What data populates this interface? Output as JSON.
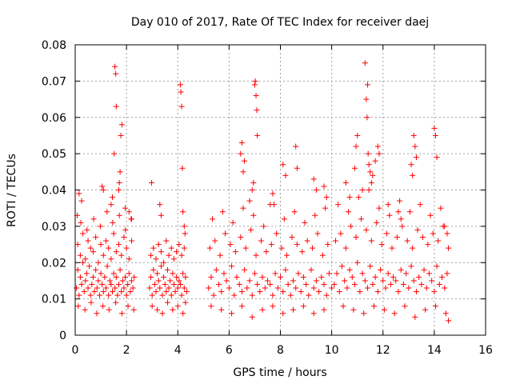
{
  "chart_data": {
    "type": "scatter",
    "title": "Day 010 of 2017, Rate Of TEC Index for receiver daej",
    "xlabel": "GPS time / hours",
    "ylabel": "ROTI / TECUs",
    "xlim": [
      0,
      16
    ],
    "ylim": [
      0,
      0.08
    ],
    "xticks": [
      0,
      2,
      4,
      6,
      8,
      10,
      12,
      14,
      16
    ],
    "yticks": [
      0,
      0.01,
      0.02,
      0.03,
      0.04,
      0.05,
      0.06,
      0.07,
      0.08
    ],
    "xtick_labels": [
      "0",
      "2",
      "4",
      "6",
      "8",
      "10",
      "12",
      "14",
      "16"
    ],
    "ytick_labels": [
      "0",
      "0.01",
      "0.02",
      "0.03",
      "0.04",
      "0.05",
      "0.06",
      "0.07",
      "0.08"
    ],
    "grid": true,
    "marker": "+",
    "color": "#ff0000",
    "series": [
      {
        "name": "ROTI",
        "x": [
          0.05,
          0.1,
          0.15,
          0.2,
          0.25,
          0.3,
          0.35,
          0.4,
          0.45,
          0.5,
          0.55,
          0.6,
          0.65,
          0.7,
          0.75,
          0.8,
          0.85,
          0.9,
          0.95,
          1.0,
          1.05,
          1.1,
          1.15,
          1.2,
          1.25,
          1.3,
          1.35,
          1.4,
          1.45,
          1.5,
          1.55,
          1.6,
          1.65,
          1.7,
          1.75,
          1.8,
          1.85,
          1.9,
          1.95,
          2.0,
          2.05,
          2.1,
          2.15,
          2.2,
          2.25,
          2.3,
          0.1,
          0.2,
          0.3,
          0.4,
          0.5,
          0.6,
          0.7,
          0.8,
          0.9,
          1.0,
          1.1,
          1.2,
          1.3,
          1.4,
          1.5,
          1.6,
          1.7,
          1.8,
          1.9,
          2.0,
          2.1,
          2.2,
          0.12,
          0.38,
          0.62,
          0.84,
          1.08,
          1.32,
          1.58,
          1.82,
          2.06,
          2.28,
          0.08,
          0.22,
          0.46,
          0.72,
          0.98,
          1.24,
          1.46,
          1.72,
          1.96,
          2.18,
          1.55,
          1.58,
          1.6,
          1.52,
          1.75,
          1.78,
          1.82,
          1.7,
          1.72,
          1.95,
          1.05,
          1.1,
          0.15,
          0.25,
          1.4,
          1.45,
          2.1,
          2.2,
          2.9,
          2.95,
          3.0,
          3.05,
          3.1,
          3.15,
          3.2,
          3.25,
          3.3,
          3.35,
          3.4,
          3.45,
          3.5,
          3.55,
          3.6,
          3.65,
          3.7,
          3.75,
          3.8,
          3.85,
          3.9,
          3.95,
          4.0,
          4.05,
          4.1,
          4.15,
          4.2,
          4.25,
          4.3,
          4.35,
          2.95,
          3.05,
          3.15,
          3.25,
          3.35,
          3.45,
          3.55,
          3.65,
          3.75,
          3.85,
          3.95,
          4.05,
          4.15,
          4.25,
          3.0,
          3.2,
          3.4,
          3.6,
          3.8,
          4.0,
          4.2,
          4.3,
          4.1,
          4.12,
          4.15,
          4.18,
          4.2,
          3.3,
          3.35,
          4.25,
          4.28,
          2.98,
          5.2,
          5.3,
          5.4,
          5.5,
          5.6,
          5.7,
          5.8,
          5.9,
          6.0,
          6.1,
          6.2,
          6.3,
          6.4,
          6.5,
          6.6,
          6.7,
          6.8,
          6.9,
          7.0,
          7.1,
          7.2,
          7.3,
          7.4,
          7.5,
          7.6,
          7.7,
          7.8,
          7.9,
          8.0,
          8.1,
          8.2,
          8.3,
          8.4,
          8.5,
          8.6,
          8.7,
          8.8,
          8.9,
          9.0,
          9.1,
          9.2,
          9.3,
          9.4,
          9.5,
          9.6,
          9.7,
          9.8,
          9.9,
          10.0,
          5.25,
          5.45,
          5.65,
          5.85,
          6.05,
          6.25,
          6.45,
          6.65,
          6.85,
          7.05,
          7.25,
          7.45,
          7.65,
          7.85,
          8.05,
          8.25,
          8.45,
          8.65,
          8.85,
          9.05,
          9.25,
          9.45,
          9.65,
          9.85,
          5.35,
          5.75,
          6.15,
          6.55,
          6.95,
          7.35,
          7.75,
          8.15,
          8.55,
          8.95,
          9.35,
          9.75,
          5.3,
          5.7,
          6.1,
          6.5,
          6.9,
          7.3,
          7.7,
          8.1,
          8.5,
          8.9,
          9.3,
          9.7,
          6.45,
          6.5,
          6.55,
          6.6,
          7.0,
          7.02,
          7.05,
          7.08,
          7.1,
          6.9,
          6.95,
          8.1,
          8.2,
          8.6,
          8.65,
          9.3,
          9.4,
          9.7,
          9.8,
          6.8,
          7.6,
          7.7,
          10.1,
          10.2,
          10.3,
          10.4,
          10.5,
          10.6,
          10.7,
          10.8,
          10.9,
          11.0,
          11.1,
          11.2,
          11.3,
          11.4,
          11.5,
          11.6,
          11.7,
          11.8,
          11.9,
          12.0,
          12.1,
          12.2,
          12.3,
          12.4,
          12.5,
          12.6,
          12.7,
          12.8,
          12.9,
          13.0,
          13.1,
          13.2,
          13.3,
          13.4,
          13.5,
          13.6,
          13.7,
          13.8,
          13.9,
          14.0,
          14.1,
          14.2,
          14.3,
          14.4,
          14.5,
          10.15,
          10.35,
          10.55,
          10.75,
          10.95,
          11.15,
          11.35,
          11.55,
          11.75,
          11.95,
          12.15,
          12.35,
          12.55,
          12.75,
          12.95,
          13.15,
          13.35,
          13.55,
          13.75,
          13.95,
          14.15,
          14.35,
          14.55,
          10.25,
          10.65,
          11.05,
          11.45,
          11.85,
          12.25,
          12.65,
          13.05,
          13.45,
          13.85,
          14.25,
          10.45,
          10.85,
          11.25,
          11.65,
          12.05,
          12.45,
          12.85,
          13.25,
          13.65,
          14.05,
          14.45,
          11.3,
          11.35,
          11.38,
          11.4,
          11.42,
          11.45,
          11.5,
          11.55,
          11.6,
          10.95,
          11.0,
          10.9,
          11.7,
          11.8,
          11.85,
          13.2,
          13.25,
          13.3,
          13.1,
          13.15,
          14.0,
          14.05,
          14.1,
          14.4,
          14.5,
          12.6,
          12.7,
          12.2,
          11.2,
          10.7,
          10.55,
          14.55
        ],
        "y": [
          0.013,
          0.018,
          0.011,
          0.016,
          0.014,
          0.02,
          0.012,
          0.015,
          0.017,
          0.013,
          0.019,
          0.011,
          0.014,
          0.016,
          0.012,
          0.018,
          0.013,
          0.015,
          0.011,
          0.017,
          0.014,
          0.012,
          0.016,
          0.013,
          0.019,
          0.011,
          0.015,
          0.014,
          0.012,
          0.017,
          0.013,
          0.016,
          0.011,
          0.014,
          0.018,
          0.012,
          0.015,
          0.013,
          0.016,
          0.011,
          0.014,
          0.017,
          0.012,
          0.015,
          0.013,
          0.016,
          0.025,
          0.022,
          0.028,
          0.021,
          0.026,
          0.024,
          0.023,
          0.027,
          0.02,
          0.025,
          0.022,
          0.026,
          0.024,
          0.021,
          0.028,
          0.023,
          0.025,
          0.022,
          0.027,
          0.024,
          0.021,
          0.026,
          0.008,
          0.007,
          0.009,
          0.006,
          0.008,
          0.007,
          0.009,
          0.006,
          0.008,
          0.007,
          0.033,
          0.031,
          0.029,
          0.032,
          0.03,
          0.034,
          0.031,
          0.033,
          0.029,
          0.032,
          0.074,
          0.072,
          0.063,
          0.05,
          0.045,
          0.055,
          0.058,
          0.04,
          0.042,
          0.035,
          0.041,
          0.04,
          0.039,
          0.037,
          0.036,
          0.038,
          0.034,
          0.032,
          0.013,
          0.016,
          0.011,
          0.018,
          0.014,
          0.012,
          0.017,
          0.015,
          0.013,
          0.019,
          0.011,
          0.016,
          0.014,
          0.012,
          0.018,
          0.013,
          0.015,
          0.011,
          0.017,
          0.014,
          0.012,
          0.016,
          0.013,
          0.015,
          0.014,
          0.011,
          0.017,
          0.013,
          0.016,
          0.012,
          0.022,
          0.024,
          0.021,
          0.025,
          0.023,
          0.02,
          0.026,
          0.022,
          0.024,
          0.021,
          0.023,
          0.025,
          0.022,
          0.024,
          0.008,
          0.007,
          0.006,
          0.009,
          0.007,
          0.008,
          0.006,
          0.009,
          0.069,
          0.067,
          0.063,
          0.046,
          0.034,
          0.036,
          0.033,
          0.03,
          0.028,
          0.042,
          0.013,
          0.016,
          0.011,
          0.018,
          0.014,
          0.012,
          0.017,
          0.015,
          0.013,
          0.019,
          0.011,
          0.016,
          0.014,
          0.012,
          0.018,
          0.013,
          0.015,
          0.011,
          0.017,
          0.014,
          0.012,
          0.016,
          0.013,
          0.015,
          0.014,
          0.011,
          0.017,
          0.013,
          0.016,
          0.012,
          0.018,
          0.014,
          0.011,
          0.015,
          0.013,
          0.017,
          0.012,
          0.016,
          0.014,
          0.011,
          0.018,
          0.013,
          0.015,
          0.012,
          0.016,
          0.014,
          0.011,
          0.017,
          0.013,
          0.024,
          0.026,
          0.022,
          0.028,
          0.025,
          0.023,
          0.027,
          0.024,
          0.029,
          0.022,
          0.026,
          0.023,
          0.025,
          0.028,
          0.024,
          0.022,
          0.027,
          0.025,
          0.023,
          0.026,
          0.024,
          0.028,
          0.022,
          0.025,
          0.032,
          0.034,
          0.031,
          0.035,
          0.033,
          0.03,
          0.036,
          0.032,
          0.034,
          0.031,
          0.033,
          0.035,
          0.008,
          0.007,
          0.006,
          0.008,
          0.005,
          0.007,
          0.008,
          0.006,
          0.007,
          0.008,
          0.006,
          0.007,
          0.05,
          0.053,
          0.045,
          0.048,
          0.069,
          0.07,
          0.066,
          0.062,
          0.055,
          0.04,
          0.042,
          0.047,
          0.044,
          0.052,
          0.046,
          0.043,
          0.04,
          0.041,
          0.038,
          0.037,
          0.036,
          0.039,
          0.014,
          0.017,
          0.012,
          0.019,
          0.015,
          0.013,
          0.018,
          0.016,
          0.014,
          0.02,
          0.012,
          0.017,
          0.015,
          0.013,
          0.019,
          0.014,
          0.016,
          0.012,
          0.018,
          0.015,
          0.013,
          0.017,
          0.014,
          0.016,
          0.015,
          0.012,
          0.018,
          0.014,
          0.017,
          0.013,
          0.019,
          0.015,
          0.012,
          0.016,
          0.014,
          0.018,
          0.013,
          0.017,
          0.015,
          0.012,
          0.019,
          0.014,
          0.016,
          0.013,
          0.017,
          0.026,
          0.028,
          0.024,
          0.03,
          0.027,
          0.032,
          0.029,
          0.026,
          0.031,
          0.025,
          0.028,
          0.024,
          0.027,
          0.03,
          0.026,
          0.024,
          0.029,
          0.027,
          0.025,
          0.028,
          0.026,
          0.03,
          0.024,
          0.036,
          0.034,
          0.038,
          0.04,
          0.035,
          0.033,
          0.037,
          0.034,
          0.036,
          0.033,
          0.035,
          0.008,
          0.007,
          0.006,
          0.008,
          0.007,
          0.006,
          0.008,
          0.005,
          0.007,
          0.008,
          0.006,
          0.075,
          0.065,
          0.06,
          0.069,
          0.05,
          0.047,
          0.045,
          0.042,
          0.044,
          0.052,
          0.055,
          0.046,
          0.048,
          0.052,
          0.05,
          0.055,
          0.052,
          0.049,
          0.047,
          0.044,
          0.057,
          0.055,
          0.049,
          0.03,
          0.028,
          0.034,
          0.032,
          0.036,
          0.04,
          0.038,
          0.042,
          0.004
        ]
      }
    ]
  }
}
